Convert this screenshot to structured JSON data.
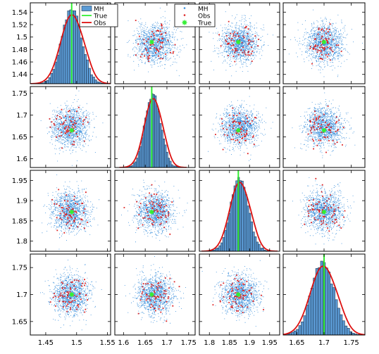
{
  "chart_data": {
    "type": "pair-plot",
    "layout": {
      "rows": 4,
      "cols": 4
    },
    "diagonal": {
      "type": "histogram",
      "legend": {
        "position": "top-right of panel 1",
        "entries": [
          "MH",
          "True",
          "Obs"
        ]
      },
      "series_styles": {
        "MH": {
          "kind": "histogram",
          "fill": "#5b9bd5",
          "edge": "#1f3550"
        },
        "True": {
          "kind": "vertical-line",
          "color": "#33ee33"
        },
        "Obs": {
          "kind": "density-line",
          "color": "#dd1111"
        }
      }
    },
    "offdiagonal": {
      "type": "scatter",
      "legend": {
        "position": "top-left of panel 2",
        "entries": [
          "MH",
          "Obs",
          "True"
        ]
      },
      "series_styles": {
        "MH": {
          "marker": "dot",
          "color": "#3a8fdb"
        },
        "Obs": {
          "marker": "dot",
          "color": "#dd2222"
        },
        "True": {
          "marker": "star",
          "color": "#33ee33"
        }
      }
    },
    "parameters": [
      {
        "true_value": 1.492,
        "mean": 1.492,
        "sd": 0.016,
        "axis_range": [
          1.425,
          1.555
        ],
        "ticks": [
          1.44,
          1.46,
          1.48,
          1.5,
          1.52,
          1.54
        ],
        "tick_labels": [
          "1.44",
          "1.46",
          "1.48",
          "1.5",
          "1.52",
          "1.54"
        ],
        "x_ticks": [
          1.45,
          1.5,
          1.55
        ],
        "x_tick_labels": [
          "1.45",
          "1.5",
          "1.55"
        ]
      },
      {
        "true_value": 1.665,
        "mean": 1.668,
        "sd": 0.018,
        "axis_range": [
          1.58,
          1.765
        ],
        "ticks": [
          1.6,
          1.65,
          1.7,
          1.75
        ],
        "tick_labels": [
          "1.6",
          "1.65",
          "1.7",
          "1.75"
        ],
        "x_ticks": [
          1.6,
          1.65,
          1.7,
          1.75
        ],
        "x_tick_labels": [
          "1.6",
          "1.65",
          "1.7",
          "1.75"
        ]
      },
      {
        "true_value": 1.872,
        "mean": 1.875,
        "sd": 0.022,
        "axis_range": [
          1.775,
          1.975
        ],
        "ticks": [
          1.8,
          1.85,
          1.9,
          1.95
        ],
        "tick_labels": [
          "1.8",
          "1.85",
          "1.9",
          "1.95"
        ],
        "x_ticks": [
          1.8,
          1.85,
          1.9,
          1.95
        ],
        "x_tick_labels": [
          "1.8",
          "1.85",
          "1.9",
          "1.95"
        ]
      },
      {
        "true_value": 1.7,
        "mean": 1.698,
        "sd": 0.021,
        "axis_range": [
          1.625,
          1.775
        ],
        "ticks": [
          1.65,
          1.7,
          1.75
        ],
        "tick_labels": [
          "1.65",
          "1.7",
          "1.75"
        ],
        "x_ticks": [
          1.65,
          1.7,
          1.75
        ],
        "x_tick_labels": [
          "1.65",
          "1.7",
          "1.75"
        ]
      }
    ],
    "grid": false
  }
}
